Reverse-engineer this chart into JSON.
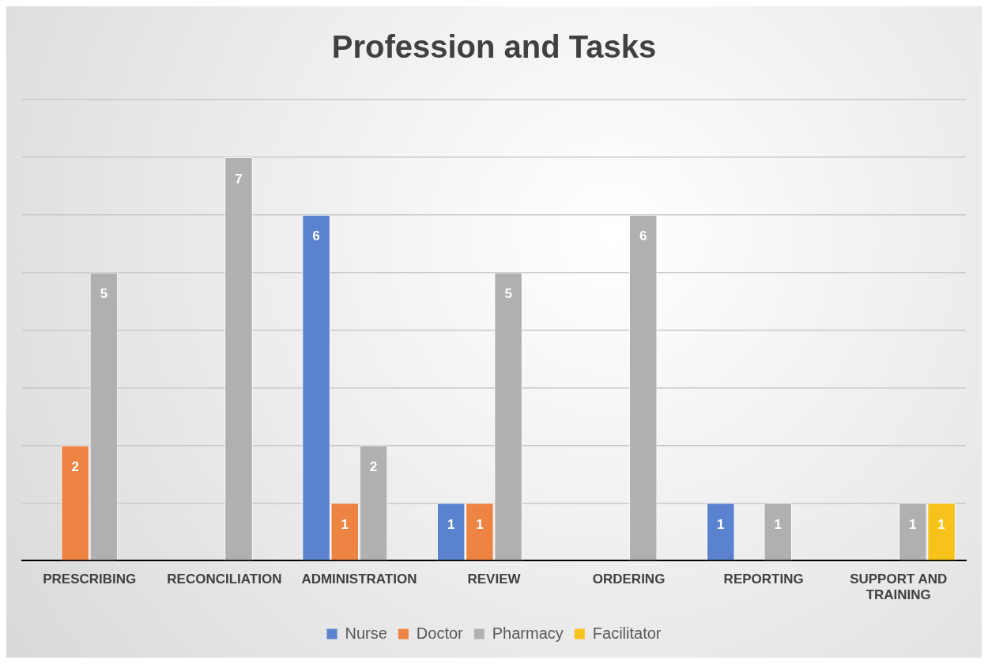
{
  "chart_data": {
    "type": "bar",
    "title": "Profession and Tasks",
    "categories": [
      "PRESCRIBING",
      "RECONCILIATION",
      "ADMINISTRATION",
      "REVIEW",
      "ORDERING",
      "REPORTING",
      "SUPPORT AND TRAINING"
    ],
    "series": [
      {
        "name": "Nurse",
        "color": "#5a82cf",
        "values": [
          null,
          null,
          6,
          1,
          null,
          1,
          null
        ]
      },
      {
        "name": "Doctor",
        "color": "#ee8443",
        "values": [
          2,
          null,
          1,
          1,
          null,
          null,
          null
        ]
      },
      {
        "name": "Pharmacy",
        "color": "#b0b0b0",
        "values": [
          5,
          7,
          2,
          5,
          6,
          1,
          1
        ]
      },
      {
        "name": "Facilitator",
        "color": "#f8c21c",
        "values": [
          null,
          null,
          null,
          null,
          null,
          null,
          1
        ]
      }
    ],
    "ylim": [
      0,
      8
    ],
    "yticks": [
      {
        "value": 0,
        "label": null
      },
      {
        "value": 1,
        "label": null
      },
      {
        "value": 2,
        "label": null
      },
      {
        "value": 3,
        "label": null
      },
      {
        "value": 4,
        "label": null
      },
      {
        "value": 5,
        "label": null
      },
      {
        "value": 6,
        "label": null
      },
      {
        "value": 7,
        "label": null
      },
      {
        "value": 8,
        "label": null
      }
    ],
    "tick_labels": "x",
    "grid": "y",
    "legend": "bottom",
    "data_labels": true
  }
}
